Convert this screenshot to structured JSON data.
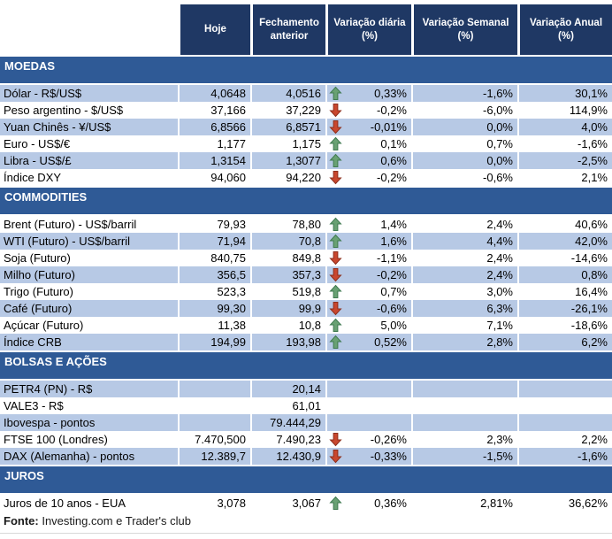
{
  "colors": {
    "header_bg": "#1F3864",
    "section_bg": "#2F5A96",
    "row_shaded_bg": "#B7C9E5",
    "row_white_bg": "#FFFFFF",
    "up_arrow": "#69A173",
    "up_arrow_border": "#3F7A50",
    "down_arrow": "#C9472E",
    "down_arrow_border": "#8E2F1C",
    "text": "#000000"
  },
  "chart_data": {
    "type": "table",
    "columns": [
      "",
      "Hoje",
      "Fechamento anterior",
      "Variação diária (%)",
      "Variação Semanal (%)",
      "Variação Anual (%)"
    ],
    "sections": [
      {
        "title": "MOEDAS",
        "rows": [
          {
            "label": "Dólar - R$/US$",
            "hoje": "4,0648",
            "fechamento": "4,0516",
            "arrow": "up",
            "diaria": "0,33%",
            "semanal": "-1,6%",
            "anual": "30,1%",
            "shaded": true
          },
          {
            "label": "Peso argentino - $/US$",
            "hoje": "37,166",
            "fechamento": "37,229",
            "arrow": "down",
            "diaria": "-0,2%",
            "semanal": "-6,0%",
            "anual": "114,9%",
            "shaded": false
          },
          {
            "label": "Yuan Chinês - ¥/US$",
            "hoje": "6,8566",
            "fechamento": "6,8571",
            "arrow": "down",
            "diaria": "-0,01%",
            "semanal": "0,0%",
            "anual": "4,0%",
            "shaded": true
          },
          {
            "label": "Euro - US$/€",
            "hoje": "1,177",
            "fechamento": "1,175",
            "arrow": "up",
            "diaria": "0,1%",
            "semanal": "0,7%",
            "anual": "-1,6%",
            "shaded": false
          },
          {
            "label": "Libra - US$/£",
            "hoje": "1,3154",
            "fechamento": "1,3077",
            "arrow": "up",
            "diaria": "0,6%",
            "semanal": "0,0%",
            "anual": "-2,5%",
            "shaded": true
          },
          {
            "label": "Índice DXY",
            "hoje": "94,060",
            "fechamento": "94,220",
            "arrow": "down",
            "diaria": "-0,2%",
            "semanal": "-0,6%",
            "anual": "2,1%",
            "shaded": false
          }
        ]
      },
      {
        "title": "COMMODITIES",
        "rows": [
          {
            "label": "Brent (Futuro) - US$/barril",
            "hoje": "79,93",
            "fechamento": "78,80",
            "arrow": "up",
            "diaria": "1,4%",
            "semanal": "2,4%",
            "anual": "40,6%",
            "shaded": false
          },
          {
            "label": "WTI (Futuro) - US$/barril",
            "hoje": "71,94",
            "fechamento": "70,8",
            "arrow": "up",
            "diaria": "1,6%",
            "semanal": "4,4%",
            "anual": "42,0%",
            "shaded": true
          },
          {
            "label": "Soja (Futuro)",
            "hoje": "840,75",
            "fechamento": "849,8",
            "arrow": "down",
            "diaria": "-1,1%",
            "semanal": "2,4%",
            "anual": "-14,6%",
            "shaded": false
          },
          {
            "label": "Milho (Futuro)",
            "hoje": "356,5",
            "fechamento": "357,3",
            "arrow": "down",
            "diaria": "-0,2%",
            "semanal": "2,4%",
            "anual": "0,8%",
            "shaded": true
          },
          {
            "label": "Trigo (Futuro)",
            "hoje": "523,3",
            "fechamento": "519,8",
            "arrow": "up",
            "diaria": "0,7%",
            "semanal": "3,0%",
            "anual": "16,4%",
            "shaded": false
          },
          {
            "label": "Café (Futuro)",
            "hoje": "99,30",
            "fechamento": "99,9",
            "arrow": "down",
            "diaria": "-0,6%",
            "semanal": "6,3%",
            "anual": "-26,1%",
            "shaded": true
          },
          {
            "label": "Açúcar (Futuro)",
            "hoje": "11,38",
            "fechamento": "10,8",
            "arrow": "up",
            "diaria": "5,0%",
            "semanal": "7,1%",
            "anual": "-18,6%",
            "shaded": false
          },
          {
            "label": "Índice CRB",
            "hoje": "194,99",
            "fechamento": "193,98",
            "arrow": "up",
            "diaria": "0,52%",
            "semanal": "2,8%",
            "anual": "6,2%",
            "shaded": true
          }
        ]
      },
      {
        "title": "BOLSAS E AÇÕES",
        "rows": [
          {
            "label": "PETR4 (PN) - R$",
            "hoje": "",
            "fechamento": "20,14",
            "arrow": null,
            "diaria": "",
            "semanal": "",
            "anual": "",
            "shaded": true
          },
          {
            "label": "VALE3 - R$",
            "hoje": "",
            "fechamento": "61,01",
            "arrow": null,
            "diaria": "",
            "semanal": "",
            "anual": "",
            "shaded": false
          },
          {
            "label": "Ibovespa - pontos",
            "hoje": "",
            "fechamento": "79.444,29",
            "arrow": null,
            "diaria": "",
            "semanal": "",
            "anual": "",
            "shaded": true
          },
          {
            "label": "FTSE 100 (Londres)",
            "hoje": "7.470,500",
            "fechamento": "7.490,23",
            "arrow": "down",
            "diaria": "-0,26%",
            "semanal": "2,3%",
            "anual": "2,2%",
            "shaded": false
          },
          {
            "label": "DAX (Alemanha) - pontos",
            "hoje": "12.389,7",
            "fechamento": "12.430,9",
            "arrow": "down",
            "diaria": "-0,33%",
            "semanal": "-1,5%",
            "anual": "-1,6%",
            "shaded": true
          }
        ]
      },
      {
        "title": "JUROS",
        "rows": [
          {
            "label": "Juros de 10 anos - EUA",
            "hoje": "3,078",
            "fechamento": "3,067",
            "arrow": "up",
            "diaria": "0,36%",
            "semanal": "2,81%",
            "anual": "36,62%",
            "shaded": false
          }
        ]
      }
    ]
  },
  "footer": {
    "label": "Fonte:",
    "text": " Investing.com e Trader's club"
  }
}
